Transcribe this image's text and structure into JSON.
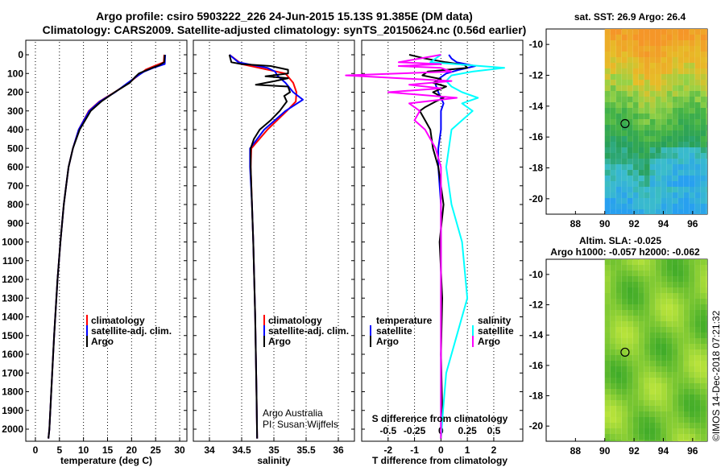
{
  "header": {
    "line1": "Argo profile: csiro 5903222_226 24-Jun-2015 15.13S 91.385E (DM data)",
    "line2": "Climatology: CARS2009. Satellite-adjusted climatology: synTS_20150624.nc (0.56d earlier)"
  },
  "colors": {
    "clim": "#ff0000",
    "sat": "#0000ff",
    "argo": "#000000",
    "sal_sat": "#00ffff",
    "sal_argo": "#ff00ff"
  },
  "chart_data": [
    {
      "type": "line",
      "panel": "temperature",
      "xlabel": "temperature (deg C)",
      "ylabel": "",
      "xlim": [
        -2,
        31.5
      ],
      "ylim": [
        2080,
        0
      ],
      "xticks": [
        "0",
        "5",
        "10",
        "15",
        "20",
        "25",
        "30"
      ],
      "yticks": [
        "0",
        "100",
        "200",
        "300",
        "400",
        "500",
        "600",
        "700",
        "800",
        "900",
        "1000",
        "1100",
        "1200",
        "1300",
        "1400",
        "1500",
        "1600",
        "1700",
        "1800",
        "1900",
        "2000"
      ],
      "legend": [
        "climatology",
        "satellite-adj. clim.",
        "Argo"
      ],
      "series": [
        {
          "name": "climatology",
          "depth": [
            0,
            40,
            60,
            80,
            100,
            150,
            200,
            250,
            300,
            400,
            500,
            600,
            700,
            800,
            1000,
            1200,
            1500,
            1700,
            2000,
            2050
          ],
          "values": [
            26.8,
            26.7,
            24.7,
            22.9,
            21.9,
            19.4,
            16.5,
            13.3,
            11.1,
            9.0,
            7.8,
            6.9,
            6.4,
            5.9,
            5.2,
            4.6,
            3.9,
            3.5,
            2.9,
            2.7
          ]
        },
        {
          "name": "satellite-adj. clim.",
          "depth": [
            0,
            50,
            70,
            90,
            110,
            150,
            200,
            250,
            300,
            400,
            500,
            600,
            700,
            800,
            1000,
            1200,
            1500,
            1700,
            2000,
            2050
          ],
          "values": [
            27.0,
            26.9,
            24.5,
            22.6,
            21.4,
            19.2,
            16.6,
            13.4,
            11.2,
            9.0,
            7.8,
            6.9,
            6.4,
            5.9,
            5.2,
            4.6,
            3.9,
            3.5,
            2.9,
            2.7
          ]
        },
        {
          "name": "Argo",
          "depth": [
            0,
            40,
            55,
            70,
            90,
            100,
            120,
            150,
            200,
            250,
            300,
            400,
            500,
            600,
            700,
            800,
            1000,
            1200,
            1500,
            1700,
            2000,
            2050
          ],
          "values": [
            26.9,
            26.8,
            25.8,
            24.3,
            22.4,
            21.5,
            20.7,
            19.6,
            16.5,
            13.7,
            11.5,
            9.2,
            7.8,
            6.9,
            6.4,
            5.9,
            5.2,
            4.6,
            3.9,
            3.5,
            2.9,
            2.7
          ]
        }
      ]
    },
    {
      "type": "line",
      "panel": "salinity",
      "xlabel": "salinity",
      "xlim": [
        33.75,
        36.25
      ],
      "ylim": [
        2080,
        0
      ],
      "xticks": [
        "34",
        "34.5",
        "35",
        "35.5",
        "36"
      ],
      "legend": [
        "climatology",
        "satellite-adj. clim.",
        "Argo"
      ],
      "series": [
        {
          "name": "climatology",
          "depth": [
            0,
            50,
            100,
            150,
            200,
            250,
            300,
            400,
            500,
            600,
            800,
            1000,
            1400,
            1800,
            2050
          ],
          "values": [
            34.31,
            34.5,
            35.18,
            35.3,
            35.35,
            35.34,
            35.2,
            34.9,
            34.65,
            34.64,
            34.66,
            34.68,
            34.71,
            34.73,
            34.74
          ]
        },
        {
          "name": "satellite-adj. clim.",
          "depth": [
            0,
            40,
            70,
            90,
            110,
            150,
            200,
            240,
            300,
            400,
            500,
            600,
            800,
            1000,
            1400,
            1800,
            2050
          ],
          "values": [
            34.31,
            34.45,
            34.9,
            35.02,
            35.05,
            35.18,
            35.3,
            35.45,
            35.18,
            34.85,
            34.63,
            34.63,
            34.66,
            34.68,
            34.71,
            34.73,
            34.74
          ]
        },
        {
          "name": "Argo",
          "depth": [
            0,
            40,
            50,
            60,
            80,
            100,
            115,
            125,
            140,
            160,
            170,
            200,
            220,
            250,
            300,
            350,
            400,
            450,
            500,
            600,
            800,
            1000,
            1400,
            1800,
            2050
          ],
          "values": [
            34.31,
            34.34,
            34.5,
            34.95,
            35.22,
            35.22,
            34.87,
            35.22,
            35.02,
            34.72,
            35.22,
            35.25,
            35.16,
            35.2,
            35.09,
            34.95,
            34.78,
            34.69,
            34.64,
            34.64,
            34.66,
            34.68,
            34.71,
            34.73,
            34.74
          ]
        }
      ]
    },
    {
      "type": "line",
      "panel": "difference",
      "xlabel": "T difference from climatology",
      "xlabel2": "S difference from climatology",
      "xlim": [
        -3,
        3.1
      ],
      "ylim": [
        2080,
        0
      ],
      "xticks": [
        "-2",
        "-1",
        "0",
        "1",
        "2"
      ],
      "xticks2": [
        "-0.5",
        "-0.25",
        "0",
        "0.25",
        "0.5"
      ],
      "legend_temperature_title": "temperature",
      "legend_salinity_title": "salinity",
      "legend_temperature": [
        "satellite",
        "Argo"
      ],
      "legend_salinity": [
        "satellite",
        "Argo"
      ],
      "series": [
        {
          "name": "temperature satellite",
          "depth": [
            0,
            20,
            40,
            60,
            80,
            100,
            130,
            160,
            200,
            260,
            300,
            400,
            500,
            600,
            800,
            1000,
            1300,
            1600,
            1900,
            2050
          ],
          "values": [
            0.3,
            0.4,
            0.6,
            1.3,
            0.7,
            0.2,
            -0.1,
            -0.2,
            -0.1,
            0.1,
            0.0,
            0.0,
            -0.1,
            -0.1,
            0.0,
            0.0,
            0.0,
            0.0,
            0.0,
            0.0
          ]
        },
        {
          "name": "temperature Argo",
          "depth": [
            0,
            20,
            40,
            55,
            70,
            90,
            110,
            130,
            150,
            170,
            200,
            230,
            250,
            280,
            300,
            350,
            400,
            500,
            600,
            700,
            800,
            1000,
            1300,
            1600,
            1900,
            2050
          ],
          "values": [
            -1.2,
            -0.6,
            0.2,
            0.9,
            1.0,
            -0.5,
            -0.7,
            0.0,
            -0.3,
            0.2,
            -0.3,
            0.1,
            -0.2,
            -0.6,
            -0.8,
            -0.6,
            -0.4,
            -0.3,
            -0.1,
            0.0,
            0.1,
            -0.05,
            0.05,
            0.0,
            0.05,
            0.0
          ]
        },
        {
          "name": "salinity satellite",
          "depth": [
            0,
            40,
            70,
            90,
            110,
            140,
            170,
            200,
            230,
            260,
            300,
            400,
            600,
            800,
            1000,
            1300,
            1500,
            1700,
            1900,
            2050
          ],
          "values": [
            0.0,
            -0.1,
            0.6,
            0.3,
            0.1,
            0.05,
            0.1,
            0.2,
            0.35,
            0.2,
            0.3,
            0.1,
            0.05,
            0.1,
            0.2,
            0.25,
            0.15,
            0.05,
            0.02,
            0.0
          ]
        },
        {
          "name": "salinity Argo",
          "depth": [
            0,
            40,
            50,
            60,
            70,
            90,
            110,
            140,
            160,
            180,
            200,
            230,
            260,
            300,
            350,
            400,
            500,
            600,
            800,
            1000,
            1300,
            1600,
            1900,
            2050
          ],
          "values": [
            0.0,
            -0.4,
            0.0,
            -0.4,
            0.0,
            0.1,
            -0.9,
            0.1,
            -0.3,
            0.0,
            -0.5,
            0.15,
            -0.3,
            -0.2,
            -0.25,
            -0.15,
            -0.05,
            0.0,
            0.0,
            0.0,
            0.0,
            0.0,
            0.0,
            0.0
          ]
        }
      ]
    },
    {
      "type": "heatmap",
      "panel": "sst_map",
      "title": "sat. SST: 26.9 Argo: 26.4",
      "xlim": [
        86,
        97
      ],
      "ylim": [
        -21,
        -9
      ],
      "xticks": [
        "88",
        "90",
        "92",
        "94",
        "96"
      ],
      "yticks": [
        "-10",
        "-12",
        "-14",
        "-16",
        "-18",
        "-20"
      ],
      "marker": {
        "lon": 91.385,
        "lat": -15.13
      }
    },
    {
      "type": "heatmap",
      "panel": "sla_map",
      "title": "Altim. SLA: -0.025",
      "subtitle": "Argo h1000: -0.057 h2000: -0.062",
      "xlim": [
        86,
        97
      ],
      "ylim": [
        -21,
        -9
      ],
      "xticks": [
        "88",
        "90",
        "92",
        "94",
        "96"
      ],
      "yticks": [
        "-10",
        "-12",
        "-14",
        "-16",
        "-18",
        "-20"
      ],
      "marker": {
        "lon": 91.385,
        "lat": -15.13
      }
    }
  ],
  "footer": {
    "credit_line1": "Argo Australia",
    "credit_line2": "PI: Susan Wijffels",
    "watermark": "©IMOS 14-Dec-2018 07:21:32"
  }
}
